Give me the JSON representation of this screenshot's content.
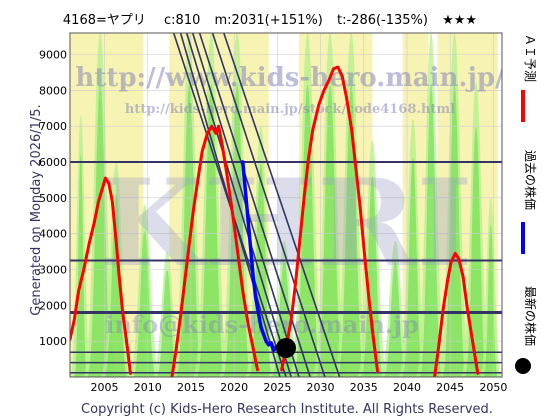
{
  "header": {
    "ticker": "4168=ヤプリ",
    "current": "c:810",
    "max_forecast": "m:2031(+151%)",
    "min_forecast": "t:-286(-135%)",
    "rating": "★★★"
  },
  "side_note": "Generated on Monday 2026/1/5.",
  "watermark": {
    "url_main": "http://www.kids-hero.main.jp/",
    "url_code": "http://kids-hero.main.jp/stock/code4168.html",
    "big_text": "KHRI",
    "email": "info@kids-hero.main.jp"
  },
  "footer": "Copyright (c) Kids-Hero Research Institute. All Rights Reserved.",
  "legend": [
    {
      "label": "ＡＩ予測",
      "color": "#ff0000",
      "marker": "line"
    },
    {
      "label": "過去の株価",
      "color": "#0000ff",
      "marker": "line"
    },
    {
      "label": "最新の株価",
      "color": "#000000",
      "marker": "dot"
    }
  ],
  "colors": {
    "green_fill": "#66dd44",
    "green_light": "#b4f08c",
    "yellow_fill": "#f5f0a0",
    "hline": "#333366",
    "trend": "#333366",
    "grid": "#cccccc",
    "forecast": "#ff0000",
    "past": "#0000ff"
  },
  "chart_data": {
    "type": "line",
    "xlim": [
      2001,
      2051
    ],
    "ylim": [
      0,
      9600
    ],
    "x_ticks": [
      2005,
      2010,
      2015,
      2020,
      2025,
      2030,
      2035,
      2040,
      2045,
      2050
    ],
    "y_ticks": [
      1000,
      2000,
      3000,
      4000,
      5000,
      6000,
      7000,
      8000,
      9000
    ],
    "grid": true,
    "legend_position": "right",
    "latest_point": {
      "x": 2026.0,
      "y": 810
    },
    "horizontal_lines": [
      {
        "y": 6000,
        "w": 2
      },
      {
        "y": 3250,
        "w": 2
      },
      {
        "y": 1800,
        "w": 3
      },
      {
        "y": 690,
        "w": 1.5
      },
      {
        "y": 400,
        "w": 1.5
      },
      {
        "y": 120,
        "w": 1.5
      }
    ],
    "trend_lines": [
      [
        2014.5,
        9600,
        2026.6,
        0
      ],
      [
        2015.2,
        9600,
        2027.5,
        0
      ],
      [
        2016.0,
        9600,
        2028.8,
        0
      ],
      [
        2017.5,
        9600,
        2030.5,
        0
      ],
      [
        2018.8,
        9600,
        2032.2,
        0
      ],
      [
        2013.0,
        9600,
        2026.0,
        0
      ],
      [
        2013.8,
        9600,
        2025.3,
        0
      ]
    ],
    "series": [
      {
        "name": "ＡＩ予測",
        "color": "#ff0000",
        "segments": [
          [
            [
              2001.0,
              1050
            ],
            [
              2001.5,
              1600
            ],
            [
              2002.0,
              2400
            ],
            [
              2002.6,
              3000
            ],
            [
              2003.2,
              3700
            ],
            [
              2003.8,
              4300
            ],
            [
              2004.3,
              4900
            ],
            [
              2004.8,
              5300
            ],
            [
              2005.1,
              5550
            ],
            [
              2005.5,
              5400
            ],
            [
              2005.9,
              4900
            ],
            [
              2006.3,
              3900
            ],
            [
              2006.7,
              2800
            ],
            [
              2007.1,
              1800
            ],
            [
              2007.6,
              900
            ],
            [
              2008.0,
              100
            ]
          ],
          [
            [
              2012.8,
              0
            ],
            [
              2013.3,
              800
            ],
            [
              2013.8,
              1700
            ],
            [
              2014.3,
              2700
            ],
            [
              2014.8,
              3700
            ],
            [
              2015.3,
              4700
            ],
            [
              2015.8,
              5500
            ],
            [
              2016.3,
              6300
            ],
            [
              2016.9,
              6800
            ],
            [
              2017.4,
              7000
            ],
            [
              2017.9,
              6800
            ],
            [
              2018.2,
              7000
            ],
            [
              2018.6,
              6500
            ],
            [
              2019.2,
              5600
            ],
            [
              2019.8,
              4600
            ],
            [
              2020.4,
              3500
            ],
            [
              2021.0,
              2400
            ],
            [
              2021.6,
              1500
            ],
            [
              2022.2,
              800
            ],
            [
              2022.7,
              200
            ]
          ],
          [
            [
              2025.5,
              200
            ],
            [
              2026.0,
              800
            ],
            [
              2026.6,
              1600
            ],
            [
              2027.1,
              2600
            ],
            [
              2027.6,
              3800
            ],
            [
              2028.1,
              5000
            ],
            [
              2028.6,
              6100
            ],
            [
              2029.1,
              6900
            ],
            [
              2029.8,
              7600
            ],
            [
              2030.4,
              8000
            ],
            [
              2031.0,
              8300
            ],
            [
              2031.5,
              8600
            ],
            [
              2032.0,
              8650
            ],
            [
              2032.5,
              8400
            ],
            [
              2033.0,
              7800
            ],
            [
              2033.6,
              6900
            ],
            [
              2034.1,
              5800
            ],
            [
              2034.6,
              4700
            ],
            [
              2035.1,
              3400
            ],
            [
              2035.6,
              2200
            ],
            [
              2036.1,
              1100
            ],
            [
              2036.6,
              150
            ]
          ],
          [
            [
              2043.2,
              0
            ],
            [
              2043.7,
              900
            ],
            [
              2044.2,
              1900
            ],
            [
              2044.7,
              2700
            ],
            [
              2045.1,
              3200
            ],
            [
              2045.6,
              3450
            ],
            [
              2046.0,
              3300
            ],
            [
              2046.5,
              2800
            ],
            [
              2047.0,
              1900
            ],
            [
              2047.6,
              1000
            ],
            [
              2048.2,
              100
            ]
          ]
        ]
      },
      {
        "name": "過去の株価",
        "color": "#0000ff",
        "segments": [
          [
            [
              2021.0,
              6000
            ],
            [
              2021.3,
              5200
            ],
            [
              2021.6,
              4400
            ],
            [
              2021.9,
              3600
            ],
            [
              2022.2,
              2800
            ],
            [
              2022.5,
              2200
            ],
            [
              2022.8,
              1800
            ],
            [
              2023.1,
              1400
            ],
            [
              2023.4,
              1200
            ],
            [
              2023.7,
              1000
            ],
            [
              2024.0,
              900
            ],
            [
              2024.3,
              950
            ],
            [
              2024.6,
              750
            ],
            [
              2024.9,
              850
            ],
            [
              2025.2,
              800
            ],
            [
              2025.5,
              820
            ],
            [
              2025.8,
              810
            ]
          ]
        ]
      }
    ]
  }
}
